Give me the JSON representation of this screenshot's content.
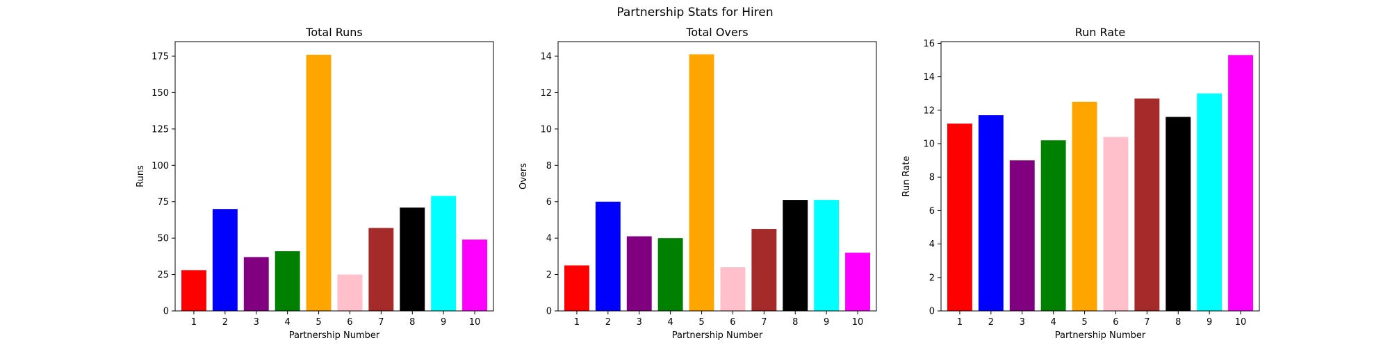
{
  "figure": {
    "suptitle": "Partnership Stats for Hiren"
  },
  "chart_data": [
    {
      "type": "bar",
      "title": "Total Runs",
      "xlabel": "Partnership Number",
      "ylabel": "Runs",
      "categories": [
        "1",
        "2",
        "3",
        "4",
        "5",
        "6",
        "7",
        "8",
        "9",
        "10"
      ],
      "values": [
        28,
        70,
        37,
        41,
        176,
        25,
        57,
        71,
        79,
        49
      ],
      "colors": [
        "#ff0000",
        "#0000ff",
        "#800080",
        "#008000",
        "#ffa500",
        "#ffc0cb",
        "#a52a2a",
        "#000000",
        "#00ffff",
        "#ff00ff"
      ],
      "ylim": [
        0,
        185
      ],
      "yticks": [
        0,
        25,
        50,
        75,
        100,
        125,
        150,
        175
      ],
      "grid": false,
      "legend": "none"
    },
    {
      "type": "bar",
      "title": "Total Overs",
      "xlabel": "Partnership Number",
      "ylabel": "Overs",
      "categories": [
        "1",
        "2",
        "3",
        "4",
        "5",
        "6",
        "7",
        "8",
        "9",
        "10"
      ],
      "values": [
        2.5,
        6.0,
        4.1,
        4.0,
        14.1,
        2.4,
        4.5,
        6.1,
        6.1,
        3.2
      ],
      "colors": [
        "#ff0000",
        "#0000ff",
        "#800080",
        "#008000",
        "#ffa500",
        "#ffc0cb",
        "#a52a2a",
        "#000000",
        "#00ffff",
        "#ff00ff"
      ],
      "ylim": [
        0,
        14.8
      ],
      "yticks": [
        0,
        2,
        4,
        6,
        8,
        10,
        12,
        14
      ],
      "grid": false,
      "legend": "none"
    },
    {
      "type": "bar",
      "title": "Run Rate",
      "xlabel": "Partnership Number",
      "ylabel": "Run Rate",
      "categories": [
        "1",
        "2",
        "3",
        "4",
        "5",
        "6",
        "7",
        "8",
        "9",
        "10"
      ],
      "values": [
        11.2,
        11.7,
        9.0,
        10.2,
        12.5,
        10.4,
        12.7,
        11.6,
        13.0,
        15.3
      ],
      "colors": [
        "#ff0000",
        "#0000ff",
        "#800080",
        "#008000",
        "#ffa500",
        "#ffc0cb",
        "#a52a2a",
        "#000000",
        "#00ffff",
        "#ff00ff"
      ],
      "ylim": [
        0,
        16.1
      ],
      "yticks": [
        0,
        2,
        4,
        6,
        8,
        10,
        12,
        14,
        16
      ],
      "grid": false,
      "legend": "none"
    }
  ]
}
